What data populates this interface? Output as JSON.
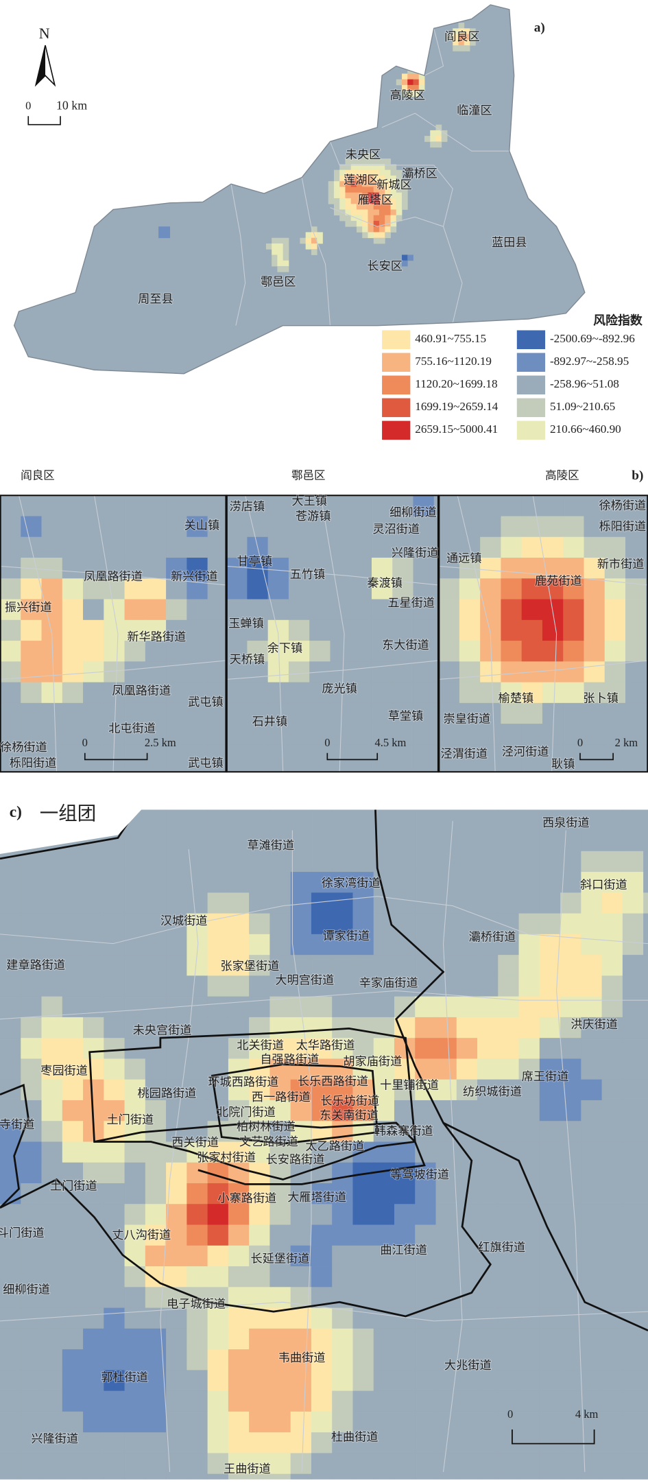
{
  "panel_a": {
    "label": "a)",
    "north": "N",
    "scale": {
      "zero": "0",
      "length": "10 km"
    },
    "districts": [
      "阎良区",
      "高陵区",
      "临潼区",
      "未央区",
      "灞桥区",
      "莲湖区",
      "新城区",
      "雁塔区",
      "长安区",
      "蓝田县",
      "鄠邑区",
      "周至县"
    ],
    "legend": {
      "title": "风险指数",
      "classes": [
        {
          "label": "460.91~755.15",
          "color": "#fde6a8"
        },
        {
          "label": "755.16~1120.19",
          "color": "#f7b480"
        },
        {
          "label": "1120.20~1699.18",
          "color": "#ef8a5b"
        },
        {
          "label": "1699.19~2659.14",
          "color": "#e05a40"
        },
        {
          "label": "2659.15~5000.41",
          "color": "#d42a2a"
        },
        {
          "label": "-2500.69~-892.96",
          "color": "#3e68b0"
        },
        {
          "label": "-892.97~-258.95",
          "color": "#6f8ec0"
        },
        {
          "label": "-258.96~51.08",
          "color": "#9aabb9"
        },
        {
          "label": "51.09~210.65",
          "color": "#c3ccbb"
        },
        {
          "label": "210.66~460.90",
          "color": "#e8eab8"
        }
      ]
    }
  },
  "panel_b": {
    "label": "b)",
    "maps": [
      {
        "title": "阎良区",
        "scale": {
          "zero": "0",
          "length": "2.5 km"
        },
        "places": [
          "关山镇",
          "凤凰路街道",
          "新兴街道",
          "振兴街道",
          "新华路街道",
          "凤凰路街道",
          "武屯镇",
          "北屯街道",
          "徐杨街道",
          "栎阳街道",
          "武屯镇"
        ]
      },
      {
        "title": "鄠邑区",
        "scale": {
          "zero": "0",
          "length": "4.5 km"
        },
        "places": [
          "大王镇",
          "涝店镇",
          "苍游镇",
          "细柳街道",
          "灵沼街道",
          "甘亭镇",
          "五竹镇",
          "兴隆街道",
          "秦渡镇",
          "五星街道",
          "玉蝉镇",
          "余下镇",
          "东大街道",
          "天桥镇",
          "庞光镇",
          "石井镇",
          "草堂镇"
        ]
      },
      {
        "title": "高陵区",
        "scale": {
          "zero": "0",
          "length": "2 km"
        },
        "places": [
          "徐杨街道",
          "栎阳街道",
          "通远镇",
          "新市街道",
          "鹿苑街道",
          "榆楚镇",
          "张卜镇",
          "崇皇街道",
          "泾渭街道",
          "泾河街道",
          "耿镇"
        ]
      }
    ]
  },
  "panel_c": {
    "label": "c)",
    "title": "一组团",
    "scale": {
      "zero": "0",
      "length": "4 km"
    },
    "places": [
      "西泉街道",
      "草滩街道",
      "斜口街道",
      "徐家湾街道",
      "汉城街道",
      "谭家街道",
      "灞桥街道",
      "建章路街道",
      "张家堡街道",
      "大明宫街道",
      "辛家庙街道",
      "未央宫街道",
      "洪庆街道",
      "北关街道",
      "太华路街道",
      "自强路街道",
      "胡家庙街道",
      "枣园街道",
      "席王街道",
      "环城西路街道",
      "长乐西路街道",
      "十里铺街道",
      "桃园路街道",
      "西一路街道",
      "纺织城街道",
      "长乐坊街道",
      "北院门街道",
      "东关南街道",
      "寺街道",
      "土门街道",
      "柏树林街道",
      "韩森寨街道",
      "西关街道",
      "文艺路街道",
      "太乙路街道",
      "张家村街道",
      "长安路街道",
      "土门街道",
      "等驾坡街道",
      "小寨路街道",
      "大雁塔街道",
      "斗门街道",
      "丈八沟街道",
      "长延堡街道",
      "曲江街道",
      "红旗街道",
      "细柳街道",
      "电子城街道",
      "韦曲街道",
      "大兆街道",
      "郭杜街道",
      "兴隆街道",
      "王曲街道",
      "杜曲街道"
    ]
  }
}
